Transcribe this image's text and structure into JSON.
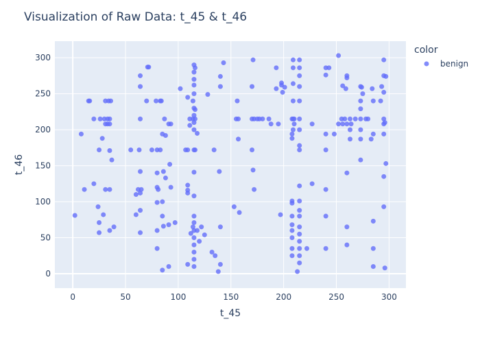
{
  "chart_data": {
    "type": "scatter",
    "title": "Visualization of Raw Data: t_45 & t_46",
    "xlabel": "t_45",
    "ylabel": "t_46",
    "xlim": [
      -17,
      316
    ],
    "ylim": [
      -20,
      323
    ],
    "xticks": [
      0,
      50,
      100,
      150,
      200,
      250,
      300
    ],
    "yticks": [
      0,
      50,
      100,
      150,
      200,
      250,
      300
    ],
    "legend": {
      "title": "color",
      "position": "top-right"
    },
    "grid": true,
    "colors": {
      "plot_bg": "#e5ecf6",
      "grid": "#ffffff",
      "marker": "#636efa",
      "text": "#2a3f5f"
    },
    "series": [
      {
        "name": "benign",
        "points": [
          [
            2,
            81
          ],
          [
            8,
            194
          ],
          [
            11,
            117
          ],
          [
            15,
            240
          ],
          [
            16,
            240
          ],
          [
            20,
            125
          ],
          [
            20,
            215
          ],
          [
            24,
            93
          ],
          [
            25,
            172
          ],
          [
            25,
            71
          ],
          [
            25,
            57
          ],
          [
            26,
            215
          ],
          [
            28,
            188
          ],
          [
            29,
            82
          ],
          [
            30,
            215
          ],
          [
            31,
            117
          ],
          [
            31,
            240
          ],
          [
            31,
            208
          ],
          [
            33,
            215
          ],
          [
            33,
            208
          ],
          [
            34,
            240
          ],
          [
            35,
            215
          ],
          [
            35,
            208
          ],
          [
            35,
            171
          ],
          [
            35,
            117
          ],
          [
            35,
            60
          ],
          [
            36,
            240
          ],
          [
            37,
            158
          ],
          [
            39,
            65
          ],
          [
            55,
            172
          ],
          [
            60,
            110
          ],
          [
            60,
            82
          ],
          [
            62,
            117
          ],
          [
            63,
            172
          ],
          [
            64,
            275
          ],
          [
            64,
            260
          ],
          [
            64,
            215
          ],
          [
            64,
            142
          ],
          [
            64,
            112
          ],
          [
            64,
            88
          ],
          [
            64,
            57
          ],
          [
            65,
            117
          ],
          [
            70,
            240
          ],
          [
            71,
            287
          ],
          [
            72,
            287
          ],
          [
            75,
            172
          ],
          [
            79,
            240
          ],
          [
            80,
            172
          ],
          [
            80,
            140
          ],
          [
            80,
            120
          ],
          [
            80,
            99
          ],
          [
            80,
            60
          ],
          [
            80,
            35
          ],
          [
            81,
            117
          ],
          [
            83,
            240
          ],
          [
            83,
            172
          ],
          [
            84,
            240
          ],
          [
            85,
            194
          ],
          [
            85,
            100
          ],
          [
            85,
            80
          ],
          [
            85,
            5
          ],
          [
            86,
            66
          ],
          [
            86,
            142
          ],
          [
            87,
            215
          ],
          [
            88,
            192
          ],
          [
            88,
            133
          ],
          [
            91,
            208
          ],
          [
            91,
            68
          ],
          [
            91,
            10
          ],
          [
            92,
            152
          ],
          [
            93,
            120
          ],
          [
            93,
            208
          ],
          [
            97,
            71
          ],
          [
            102,
            257
          ],
          [
            107,
            172
          ],
          [
            109,
            245
          ],
          [
            109,
            172
          ],
          [
            109,
            123
          ],
          [
            109,
            116
          ],
          [
            109,
            112
          ],
          [
            109,
            13
          ],
          [
            111,
            215
          ],
          [
            111,
            206
          ],
          [
            112,
            56
          ],
          [
            114,
            240
          ],
          [
            114,
            215
          ],
          [
            114,
            65
          ],
          [
            115,
            290
          ],
          [
            115,
            280
          ],
          [
            115,
            270
          ],
          [
            115,
            262
          ],
          [
            115,
            250
          ],
          [
            115,
            230
          ],
          [
            115,
            220
          ],
          [
            115,
            210
          ],
          [
            115,
            200
          ],
          [
            115,
            172
          ],
          [
            115,
            141
          ],
          [
            115,
            108
          ],
          [
            115,
            80
          ],
          [
            115,
            71
          ],
          [
            115,
            60
          ],
          [
            115,
            50
          ],
          [
            115,
            40
          ],
          [
            115,
            30
          ],
          [
            115,
            20
          ],
          [
            115,
            10
          ],
          [
            116,
            286
          ],
          [
            116,
            228
          ],
          [
            116,
            215
          ],
          [
            116,
            172
          ],
          [
            118,
            195
          ],
          [
            118,
            60
          ],
          [
            120,
            45
          ],
          [
            122,
            65
          ],
          [
            125,
            54
          ],
          [
            128,
            249
          ],
          [
            132,
            30
          ],
          [
            134,
            172
          ],
          [
            135,
            25
          ],
          [
            138,
            3
          ],
          [
            139,
            142
          ],
          [
            140,
            13
          ],
          [
            140,
            274
          ],
          [
            140,
            260
          ],
          [
            140,
            65
          ],
          [
            143,
            293
          ],
          [
            153,
            93
          ],
          [
            155,
            215
          ],
          [
            156,
            240
          ],
          [
            157,
            215
          ],
          [
            157,
            187
          ],
          [
            158,
            85
          ],
          [
            170,
            260
          ],
          [
            170,
            215
          ],
          [
            170,
            172
          ],
          [
            171,
            297
          ],
          [
            171,
            144
          ],
          [
            172,
            215
          ],
          [
            172,
            117
          ],
          [
            175,
            215
          ],
          [
            177,
            215
          ],
          [
            180,
            215
          ],
          [
            186,
            215
          ],
          [
            188,
            208
          ],
          [
            193,
            286
          ],
          [
            193,
            257
          ],
          [
            195,
            208
          ],
          [
            197,
            82
          ],
          [
            198,
            265
          ],
          [
            198,
            262
          ],
          [
            199,
            252
          ],
          [
            201,
            259
          ],
          [
            208,
            215
          ],
          [
            208,
            194
          ],
          [
            208,
            188
          ],
          [
            208,
            101
          ],
          [
            208,
            98
          ],
          [
            208,
            80
          ],
          [
            208,
            68
          ],
          [
            208,
            60
          ],
          [
            208,
            50
          ],
          [
            208,
            35
          ],
          [
            208,
            25
          ],
          [
            209,
            297
          ],
          [
            209,
            286
          ],
          [
            209,
            264
          ],
          [
            209,
            240
          ],
          [
            209,
            215
          ],
          [
            209,
            200
          ],
          [
            210,
            215
          ],
          [
            210,
            208
          ],
          [
            213,
            3
          ],
          [
            215,
            297
          ],
          [
            215,
            286
          ],
          [
            215,
            275
          ],
          [
            215,
            260
          ],
          [
            215,
            240
          ],
          [
            215,
            215
          ],
          [
            215,
            200
          ],
          [
            215,
            178
          ],
          [
            215,
            172
          ],
          [
            215,
            122
          ],
          [
            215,
            101
          ],
          [
            215,
            88
          ],
          [
            215,
            80
          ],
          [
            215,
            65
          ],
          [
            215,
            55
          ],
          [
            215,
            45
          ],
          [
            215,
            35
          ],
          [
            215,
            25
          ],
          [
            215,
            15
          ],
          [
            222,
            35
          ],
          [
            227,
            208
          ],
          [
            227,
            125
          ],
          [
            240,
            286
          ],
          [
            240,
            276
          ],
          [
            240,
            194
          ],
          [
            240,
            172
          ],
          [
            240,
            117
          ],
          [
            240,
            80
          ],
          [
            240,
            35
          ],
          [
            243,
            286
          ],
          [
            248,
            194
          ],
          [
            252,
            303
          ],
          [
            252,
            208
          ],
          [
            255,
            215
          ],
          [
            256,
            261
          ],
          [
            256,
            208
          ],
          [
            258,
            215
          ],
          [
            259,
            257
          ],
          [
            260,
            275
          ],
          [
            260,
            272
          ],
          [
            260,
            208
          ],
          [
            260,
            140
          ],
          [
            260,
            65
          ],
          [
            260,
            40
          ],
          [
            263,
            215
          ],
          [
            263,
            200
          ],
          [
            263,
            187
          ],
          [
            264,
            208
          ],
          [
            268,
            215
          ],
          [
            273,
            260
          ],
          [
            273,
            240
          ],
          [
            273,
            229
          ],
          [
            273,
            215
          ],
          [
            273,
            200
          ],
          [
            273,
            187
          ],
          [
            273,
            158
          ],
          [
            274,
            259
          ],
          [
            275,
            250
          ],
          [
            278,
            215
          ],
          [
            280,
            215
          ],
          [
            283,
            187
          ],
          [
            284,
            257
          ],
          [
            285,
            240
          ],
          [
            285,
            194
          ],
          [
            285,
            73
          ],
          [
            285,
            35
          ],
          [
            285,
            10
          ],
          [
            292,
            240
          ],
          [
            293,
            260
          ],
          [
            295,
            297
          ],
          [
            295,
            275
          ],
          [
            295,
            252
          ],
          [
            295,
            215
          ],
          [
            295,
            208
          ],
          [
            295,
            194
          ],
          [
            295,
            135
          ],
          [
            295,
            93
          ],
          [
            296,
            210
          ],
          [
            296,
            8
          ],
          [
            297,
            274
          ],
          [
            297,
            153
          ]
        ]
      }
    ]
  }
}
